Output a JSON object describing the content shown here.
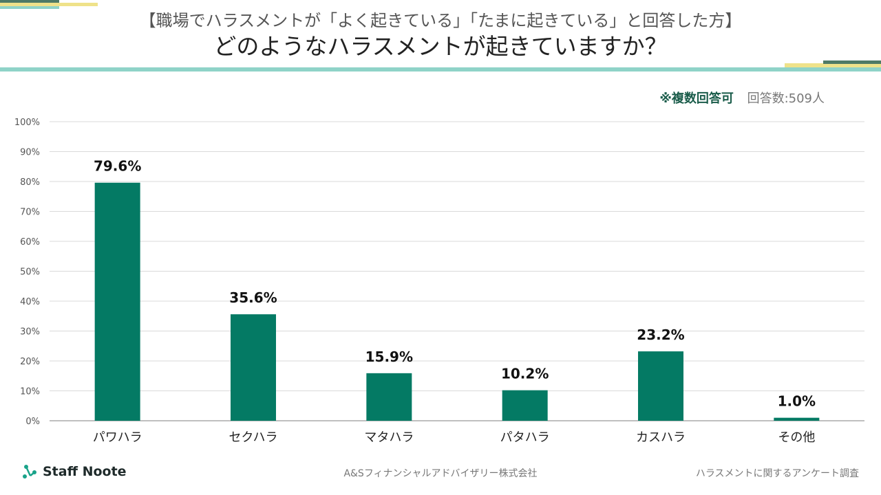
{
  "header": {
    "subtitle": "【職場でハラスメントが「よく起きている」「たまに起きている」と回答した方】",
    "title": "どのようなハラスメントが起きていますか？"
  },
  "note": {
    "multiple_answers": "※複数回答可",
    "respondents": "回答数:509人"
  },
  "footer": {
    "logo_text": "Staff Noote",
    "company": "A&Sフィナンシャルアドバイザリー株式会社",
    "survey_name": "ハラスメントに関するアンケート調査"
  },
  "colors": {
    "bar": "#047a64",
    "accent_teal": "#8fd3c8",
    "accent_yellow": "#efe28a",
    "accent_dark": "#4e7a66"
  },
  "chart_data": {
    "type": "bar",
    "title": "どのようなハラスメントが起きていますか？",
    "categories": [
      "パワハラ",
      "セクハラ",
      "マタハラ",
      "パタハラ",
      "カスハラ",
      "その他"
    ],
    "values": [
      79.6,
      35.6,
      15.9,
      10.2,
      23.2,
      1.0
    ],
    "value_labels": [
      "79.6%",
      "35.6%",
      "15.9%",
      "10.2%",
      "23.2%",
      "1.0%"
    ],
    "ylim": [
      0,
      100
    ],
    "yticks": [
      0,
      10,
      20,
      30,
      40,
      50,
      60,
      70,
      80,
      90,
      100
    ],
    "ytick_labels": [
      "0%",
      "10%",
      "20%",
      "30%",
      "40%",
      "50%",
      "60%",
      "70%",
      "80%",
      "90%",
      "100%"
    ],
    "xlabel": "",
    "ylabel": "",
    "grid": true,
    "legend": "none"
  }
}
